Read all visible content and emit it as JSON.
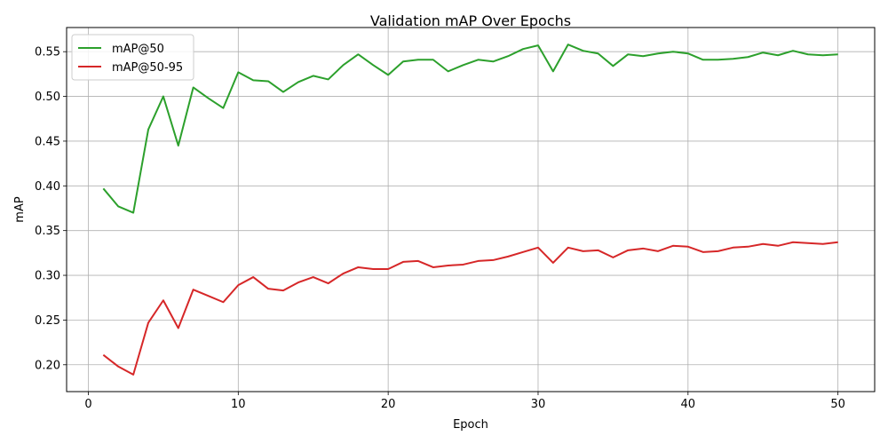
{
  "chart_data": {
    "type": "line",
    "title": "Validation mAP Over Epochs",
    "xlabel": "Epoch",
    "ylabel": "mAP",
    "xlim": [
      -1.45,
      52.45
    ],
    "ylim": [
      0.17,
      0.577
    ],
    "xticks": [
      0,
      10,
      20,
      30,
      40,
      50
    ],
    "yticks": [
      0.2,
      0.25,
      0.3,
      0.35,
      0.4,
      0.45,
      0.5,
      0.55
    ],
    "xtick_labels": [
      "0",
      "10",
      "20",
      "30",
      "40",
      "50"
    ],
    "ytick_labels": [
      "0.20",
      "0.25",
      "0.30",
      "0.35",
      "0.40",
      "0.45",
      "0.50",
      "0.55"
    ],
    "grid": true,
    "legend_position": "top-left",
    "x": [
      1,
      2,
      3,
      4,
      5,
      6,
      7,
      8,
      9,
      10,
      11,
      12,
      13,
      14,
      15,
      16,
      17,
      18,
      19,
      20,
      21,
      22,
      23,
      24,
      25,
      26,
      27,
      28,
      29,
      30,
      31,
      32,
      33,
      34,
      35,
      36,
      37,
      38,
      39,
      40,
      41,
      42,
      43,
      44,
      45,
      46,
      47,
      48,
      49,
      50
    ],
    "series": [
      {
        "name": "mAP@50",
        "color": "#2ca02c",
        "values": [
          0.397,
          0.377,
          0.37,
          0.463,
          0.5,
          0.445,
          0.51,
          0.498,
          0.487,
          0.527,
          0.518,
          0.517,
          0.505,
          0.516,
          0.523,
          0.519,
          0.535,
          0.547,
          0.535,
          0.524,
          0.539,
          0.541,
          0.541,
          0.528,
          0.535,
          0.541,
          0.539,
          0.545,
          0.553,
          0.557,
          0.528,
          0.558,
          0.551,
          0.548,
          0.534,
          0.547,
          0.545,
          0.548,
          0.55,
          0.548,
          0.541,
          0.541,
          0.542,
          0.544,
          0.549,
          0.546,
          0.551,
          0.547,
          0.546,
          0.547
        ]
      },
      {
        "name": "mAP@50-95",
        "color": "#d62728",
        "values": [
          0.211,
          0.198,
          0.189,
          0.247,
          0.272,
          0.241,
          0.284,
          0.277,
          0.27,
          0.289,
          0.298,
          0.285,
          0.283,
          0.292,
          0.298,
          0.291,
          0.302,
          0.309,
          0.307,
          0.307,
          0.315,
          0.316,
          0.309,
          0.311,
          0.312,
          0.316,
          0.317,
          0.321,
          0.326,
          0.331,
          0.314,
          0.331,
          0.327,
          0.328,
          0.32,
          0.328,
          0.33,
          0.327,
          0.333,
          0.332,
          0.326,
          0.327,
          0.331,
          0.332,
          0.335,
          0.333,
          0.337,
          0.336,
          0.335,
          0.337
        ]
      }
    ]
  }
}
